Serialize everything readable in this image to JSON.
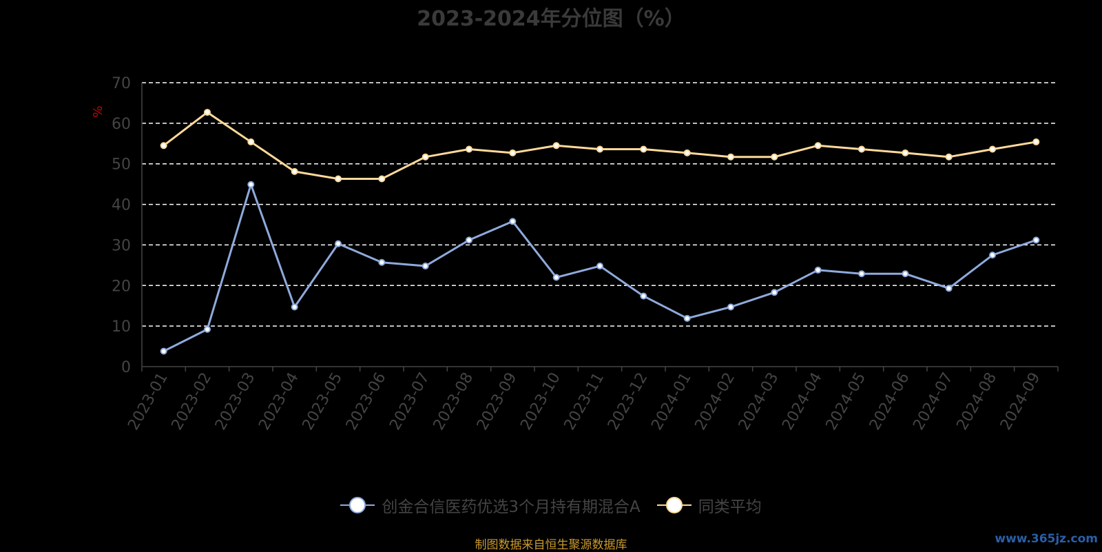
{
  "title": "2023-2024年分位图（%）",
  "source_note": "制图数据来自恒生聚源数据库",
  "watermark": "www.365jz.com",
  "colors": {
    "background": "#000000",
    "series_a": "#8faadc",
    "series_b": "#ffd99a",
    "grid": "#ffffff",
    "axis_text": "#444444",
    "ylabel": "#cc0000",
    "source": "#c99a2e"
  },
  "chart_data": {
    "type": "line",
    "ylabel": "%",
    "xlabel": "",
    "ylim": [
      0,
      70
    ],
    "yticks": [
      0,
      10,
      20,
      30,
      40,
      50,
      60,
      70
    ],
    "grid": "dashed-horizontal",
    "legend_position": "bottom-center",
    "categories": [
      "2023-01",
      "2023-02",
      "2023-03",
      "2023-04",
      "2023-05",
      "2023-06",
      "2023-07",
      "2023-08",
      "2023-09",
      "2023-10",
      "2023-11",
      "2023-12",
      "2024-01",
      "2024-02",
      "2024-03",
      "2024-04",
      "2024-05",
      "2024-06",
      "2024-07",
      "2024-08",
      "2024-09"
    ],
    "series": [
      {
        "name": "创金合信医药优选3个月持有期混合A",
        "color": "#8faadc",
        "values": [
          3.8,
          9.2,
          44.9,
          14.7,
          30.3,
          25.7,
          24.8,
          31.2,
          35.8,
          22.0,
          24.8,
          17.4,
          11.9,
          14.7,
          18.3,
          23.8,
          22.9,
          22.9,
          19.3,
          27.5,
          31.2
        ]
      },
      {
        "name": "同类平均",
        "color": "#ffd99a",
        "values": [
          54.5,
          62.7,
          55.4,
          48.1,
          46.3,
          46.3,
          51.7,
          53.6,
          52.7,
          54.5,
          53.6,
          53.6,
          52.7,
          51.7,
          51.7,
          54.5,
          53.6,
          52.7,
          51.7,
          53.6,
          55.4
        ]
      }
    ]
  }
}
